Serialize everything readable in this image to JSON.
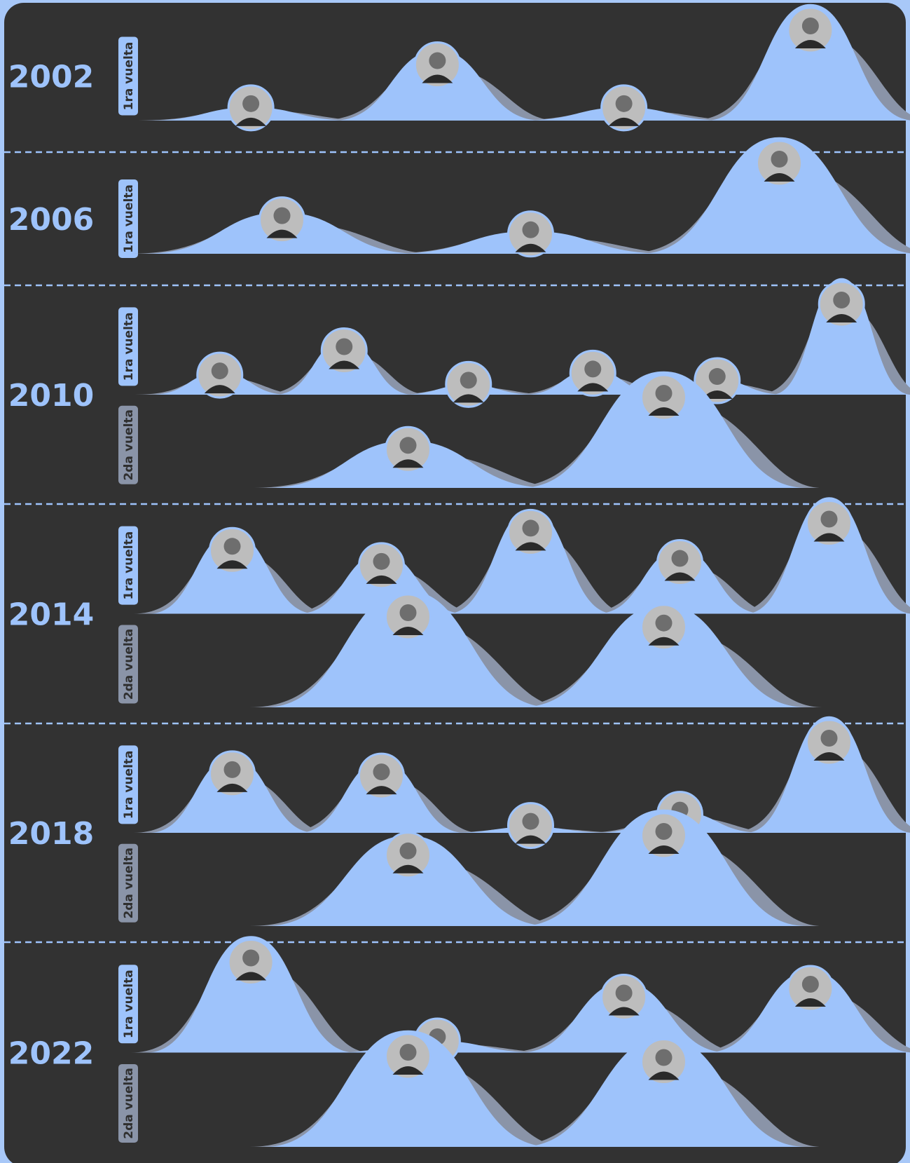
{
  "elections": [
    {
      "year": "2002",
      "rounds": [
        {
          "label": "1ra vuelta",
          "values": [
            6,
            32,
            6,
            53
          ]
        }
      ]
    },
    {
      "year": "2006",
      "rounds": [
        {
          "label": "1ra vuelta",
          "values": [
            22,
            12,
            62
          ]
        }
      ]
    },
    {
      "year": "2010",
      "rounds": [
        {
          "label": "1ra vuelta",
          "values": [
            9,
            22,
            4,
            10,
            6,
            47
          ]
        },
        {
          "label": "2da vuelta",
          "values": [
            28,
            69
          ]
        }
      ]
    },
    {
      "year": "2014",
      "rounds": [
        {
          "label": "1ra vuelta",
          "values": [
            20,
            15,
            26,
            16,
            29
          ]
        },
        {
          "label": "2da vuelta",
          "values": [
            51,
            45
          ]
        }
      ]
    },
    {
      "year": "2018",
      "rounds": [
        {
          "label": "1ra vuelta",
          "values": [
            25,
            24,
            2,
            7,
            39
          ]
        },
        {
          "label": "2da vuelta",
          "values": [
            42,
            54
          ]
        }
      ]
    },
    {
      "year": "2022",
      "rounds": [
        {
          "label": "1ra vuelta",
          "values": [
            40,
            4,
            24,
            28
          ]
        },
        {
          "label": "2da vuelta",
          "values": [
            50,
            47
          ]
        }
      ]
    }
  ]
}
